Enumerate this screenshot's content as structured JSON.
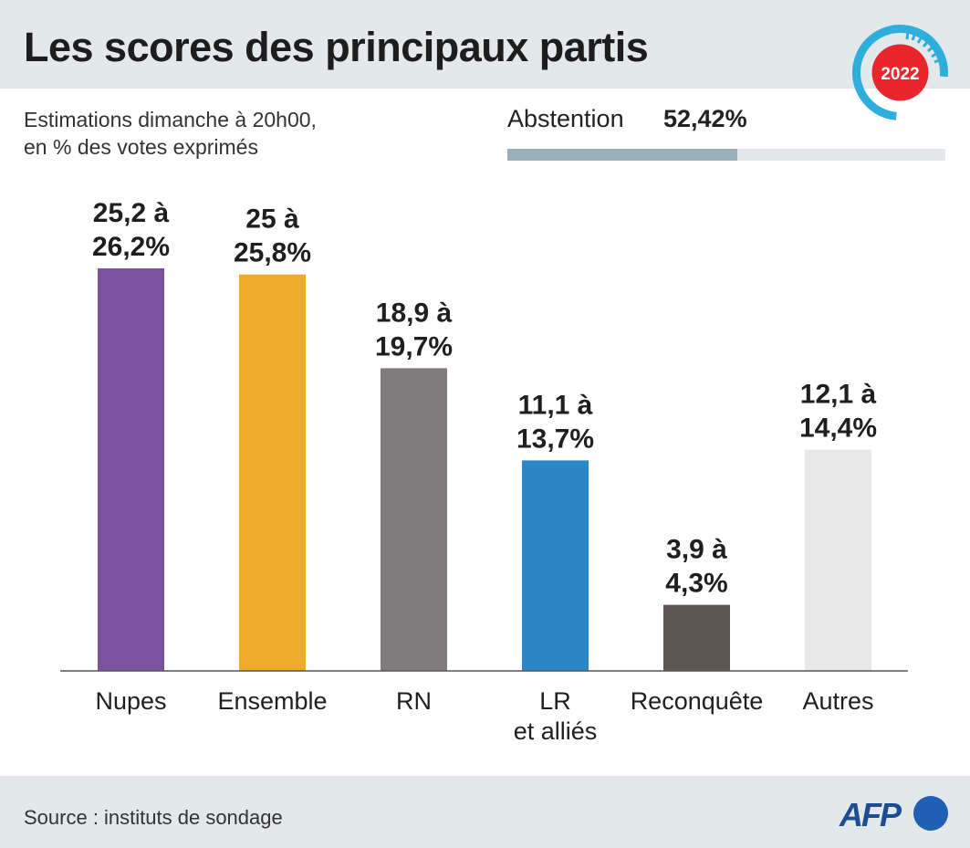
{
  "title": "Les scores des principaux partis",
  "subtitle_line1": "Estimations dimanche à 20h00,",
  "subtitle_line2": "en % des votes exprimés",
  "abstention": {
    "label": "Abstention",
    "value_text": "52,42%",
    "value": 52.42
  },
  "badge_year": "2022",
  "source": "Source : instituts de sondage",
  "logo_text": "AFP",
  "colors": {
    "header_bg": "#e3e8eb",
    "badge_ring": "#2eaedb",
    "badge_center": "#e8262b"
  },
  "chart_data": {
    "type": "bar",
    "title": "Les scores des principaux partis",
    "categories": [
      [
        "Nupes"
      ],
      [
        "Ensemble"
      ],
      [
        "RN"
      ],
      [
        "LR",
        "et alliés"
      ],
      [
        "Reconquête"
      ],
      [
        "Autres"
      ]
    ],
    "values": [
      26.2,
      25.8,
      19.7,
      13.7,
      4.3,
      14.4
    ],
    "ranges": [
      [
        25.2,
        26.2
      ],
      [
        25,
        25.8
      ],
      [
        18.9,
        19.7
      ],
      [
        11.1,
        13.7
      ],
      [
        3.9,
        4.3
      ],
      [
        12.1,
        14.4
      ]
    ],
    "labels": [
      [
        "25,2 à",
        "26,2%"
      ],
      [
        "25 à",
        "25,8%"
      ],
      [
        "18,9 à",
        "19,7%"
      ],
      [
        "11,1 à",
        "13,7%"
      ],
      [
        "3,9 à",
        "4,3%"
      ],
      [
        "12,1 à",
        "14,4%"
      ]
    ],
    "colors": [
      "#7a52a0",
      "#eeab2b",
      "#807b7c",
      "#2b86c8",
      "#5e5653",
      "#e8e8e9"
    ],
    "ylim": [
      0,
      30
    ],
    "grid": false,
    "xlabel": "",
    "ylabel": ""
  }
}
